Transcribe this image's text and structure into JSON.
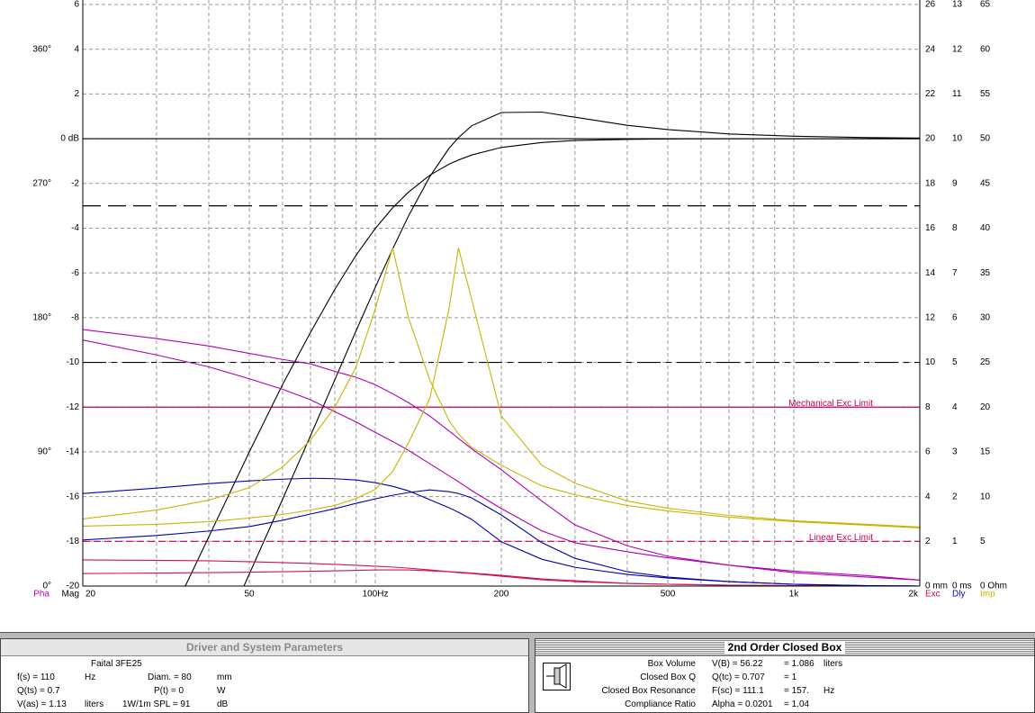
{
  "chart_data": {
    "type": "line",
    "y_label": "Mag",
    "xscale": "log",
    "xlim": [
      20,
      2000
    ],
    "xticks": [
      20,
      50,
      {
        "value": 100,
        "label": "100Hz"
      },
      200,
      500,
      {
        "value": 1000,
        "label": "1k"
      },
      {
        "value": 2000,
        "label": "2k"
      }
    ],
    "xgrid": [
      30,
      40,
      60,
      70,
      80,
      90,
      300,
      400,
      600,
      700,
      800,
      900
    ],
    "ylim": [
      -20,
      6
    ],
    "yticks": [
      -20,
      -18,
      -16,
      -14,
      -12,
      -10,
      -8,
      -6,
      -4,
      -2,
      {
        "value": 0,
        "label": "0 dB"
      },
      2,
      4,
      6
    ],
    "grid": true,
    "axes": [
      {
        "name": "Pha",
        "side": "left",
        "color": "#c000c0",
        "lim": [
          0,
          390
        ],
        "ticks": [
          {
            "value": 0,
            "label": "0°"
          },
          {
            "value": 90,
            "label": "90°"
          },
          {
            "value": 180,
            "label": "180°"
          },
          {
            "value": 270,
            "label": "270°"
          },
          {
            "value": 360,
            "label": "360°"
          }
        ]
      },
      {
        "name": "Exc",
        "side": "right",
        "color": "#c8005a",
        "lim": [
          0,
          26
        ],
        "ticks": [
          {
            "value": 0,
            "label": "0 mm"
          },
          2,
          4,
          6,
          8,
          10,
          12,
          14,
          16,
          18,
          20,
          22,
          24,
          26
        ]
      },
      {
        "name": "Dly",
        "side": "right",
        "color": "#0000c0",
        "lim": [
          0,
          13
        ],
        "ticks": [
          {
            "value": 0,
            "label": "0 ms"
          },
          1,
          2,
          3,
          4,
          5,
          6,
          7,
          8,
          9,
          10,
          11,
          12,
          13
        ]
      },
      {
        "name": "Imp",
        "side": "right",
        "color": "#c8b400",
        "lim": [
          0,
          65
        ],
        "ticks": [
          {
            "value": 0,
            "label": "0 Ohm"
          },
          5,
          10,
          15,
          20,
          25,
          30,
          35,
          40,
          45,
          50,
          55,
          60,
          65
        ]
      }
    ],
    "ref_lines": [
      {
        "axis": "Mag",
        "value": 0,
        "style": "solid",
        "color": "#000000"
      },
      {
        "axis": "Mag",
        "value": -3,
        "style": "dashed",
        "color": "#000000"
      },
      {
        "axis": "Mag",
        "value": -10,
        "style": "dashdot",
        "color": "#000000"
      },
      {
        "axis": "Exc",
        "value": 8,
        "style": "solid",
        "color": "#c8005a",
        "label": "Mechanical Exc Limit"
      },
      {
        "axis": "Exc",
        "value": 2,
        "style": "dashed",
        "color": "#c8005a",
        "label": "Linear Exc Limit"
      }
    ],
    "x": [
      20,
      30,
      40,
      50,
      60,
      70,
      80,
      90,
      100,
      110,
      120,
      135,
      150,
      158,
      170,
      200,
      250,
      300,
      400,
      500,
      700,
      1000,
      1500,
      2000
    ],
    "series": [
      {
        "axis": "Mag",
        "color": "#000000",
        "values": [
          null,
          -22.7,
          -17.8,
          -14.0,
          -11.0,
          -8.66,
          -6.74,
          -5.2,
          -4.01,
          -3.09,
          -2.39,
          -1.63,
          -1.14,
          -0.95,
          -0.73,
          -0.39,
          -0.17,
          -0.08,
          -0.03,
          -0.01,
          0,
          0,
          0,
          0
        ]
      },
      {
        "axis": "Mag",
        "color": "#000000",
        "values": [
          null,
          null,
          -23.5,
          -19.46,
          -16.13,
          -13.28,
          -10.78,
          -8.58,
          -6.64,
          -4.93,
          -3.46,
          -1.69,
          -0.43,
          0.05,
          0.58,
          1.17,
          1.19,
          0.96,
          0.6,
          0.41,
          0.21,
          0.11,
          0.05,
          0.03
        ]
      },
      {
        "axis": "Pha",
        "color": "#b000b0",
        "values": [
          172,
          166,
          161,
          156,
          152,
          149,
          144,
          140,
          135,
          129,
          123,
          114,
          104,
          99,
          92,
          78,
          57,
          41,
          27,
          20,
          14,
          9,
          6,
          4
        ]
      },
      {
        "axis": "Pha",
        "color": "#b000b0",
        "values": [
          165,
          155,
          147,
          139,
          132,
          125,
          117,
          110,
          103,
          97,
          91,
          82,
          74,
          70,
          64,
          52,
          37,
          29,
          23,
          19,
          14,
          10,
          7,
          4
        ]
      },
      {
        "axis": "Exc",
        "color": "#d0105a",
        "values": [
          1.17,
          1.15,
          1.13,
          1.09,
          1.05,
          1.01,
          0.97,
          0.93,
          0.89,
          0.85,
          0.8,
          0.72,
          0.64,
          0.6,
          0.56,
          0.44,
          0.28,
          0.2,
          0.12,
          0.08,
          0.04,
          0.02,
          0,
          0
        ]
      },
      {
        "axis": "Exc",
        "color": "#d0105a",
        "values": [
          0.56,
          0.58,
          0.6,
          0.62,
          0.64,
          0.66,
          0.68,
          0.7,
          0.72,
          0.72,
          0.72,
          0.68,
          0.64,
          0.62,
          0.58,
          0.48,
          0.32,
          0.24,
          0.12,
          0.08,
          0.04,
          0.02,
          0,
          0
        ]
      },
      {
        "axis": "Dly",
        "color": "#0000b0",
        "values": [
          2.07,
          2.19,
          2.29,
          2.35,
          2.39,
          2.41,
          2.4,
          2.37,
          2.31,
          2.23,
          2.13,
          1.93,
          1.75,
          1.65,
          1.49,
          0.99,
          0.6,
          0.42,
          0.26,
          0.18,
          0.1,
          0.04,
          0.01,
          0
        ]
      },
      {
        "axis": "Dly",
        "color": "#0000b0",
        "values": [
          1.03,
          1.13,
          1.23,
          1.33,
          1.47,
          1.61,
          1.73,
          1.85,
          1.95,
          2.03,
          2.09,
          2.15,
          2.11,
          2.07,
          1.97,
          1.59,
          0.97,
          0.62,
          0.32,
          0.2,
          0.1,
          0.04,
          0.01,
          0
        ]
      },
      {
        "axis": "Imp",
        "color": "#c8b400",
        "values": [
          7.5,
          8.5,
          9.6,
          11,
          13.3,
          16.3,
          20,
          24.5,
          31,
          37.8,
          30,
          23,
          18.5,
          17,
          15.5,
          13.5,
          11.2,
          10.2,
          9,
          8.4,
          7.7,
          7.2,
          6.8,
          6.5
        ]
      },
      {
        "axis": "Imp",
        "color": "#c8b400",
        "values": [
          6.7,
          6.9,
          7.2,
          7.6,
          8,
          8.5,
          9,
          9.8,
          10.8,
          12.8,
          16,
          21,
          31,
          37.8,
          32,
          19,
          13.5,
          11.5,
          9.5,
          8.7,
          7.9,
          7.3,
          6.9,
          6.6
        ]
      }
    ]
  },
  "driver_panel": {
    "title": "Driver and System Parameters",
    "driver": "Faital 3FE25",
    "rows": [
      [
        {
          "text": "f(s) = 110",
          "unit": "Hz"
        },
        {
          "text": "Diam. = 80",
          "unit": "mm"
        }
      ],
      [
        {
          "text": "Q(ts) = 0.7"
        },
        {
          "text": "P(t) = 0",
          "unit": "W"
        }
      ],
      [
        {
          "text": "V(as) = 1.13",
          "unit": "liters"
        },
        {
          "text": "1W/1m SPL = 91",
          "unit": "dB"
        }
      ]
    ]
  },
  "box_panel": {
    "title": "2nd Order Closed Box",
    "rows": [
      {
        "name": "Box Volume",
        "value": "V(B) = 56.22",
        "alt": "= 1.086",
        "unit": "liters"
      },
      {
        "name": "Closed Box Q",
        "value": "Q(tc) = 0.707",
        "alt": "= 1"
      },
      {
        "name": "Closed Box Resonance",
        "value": "F(sc) = 111.1",
        "alt": "= 157.",
        "unit": "Hz"
      },
      {
        "name": "Compliance Ratio",
        "value": "Alpha = 0.0201",
        "alt": "= 1.04"
      }
    ]
  }
}
